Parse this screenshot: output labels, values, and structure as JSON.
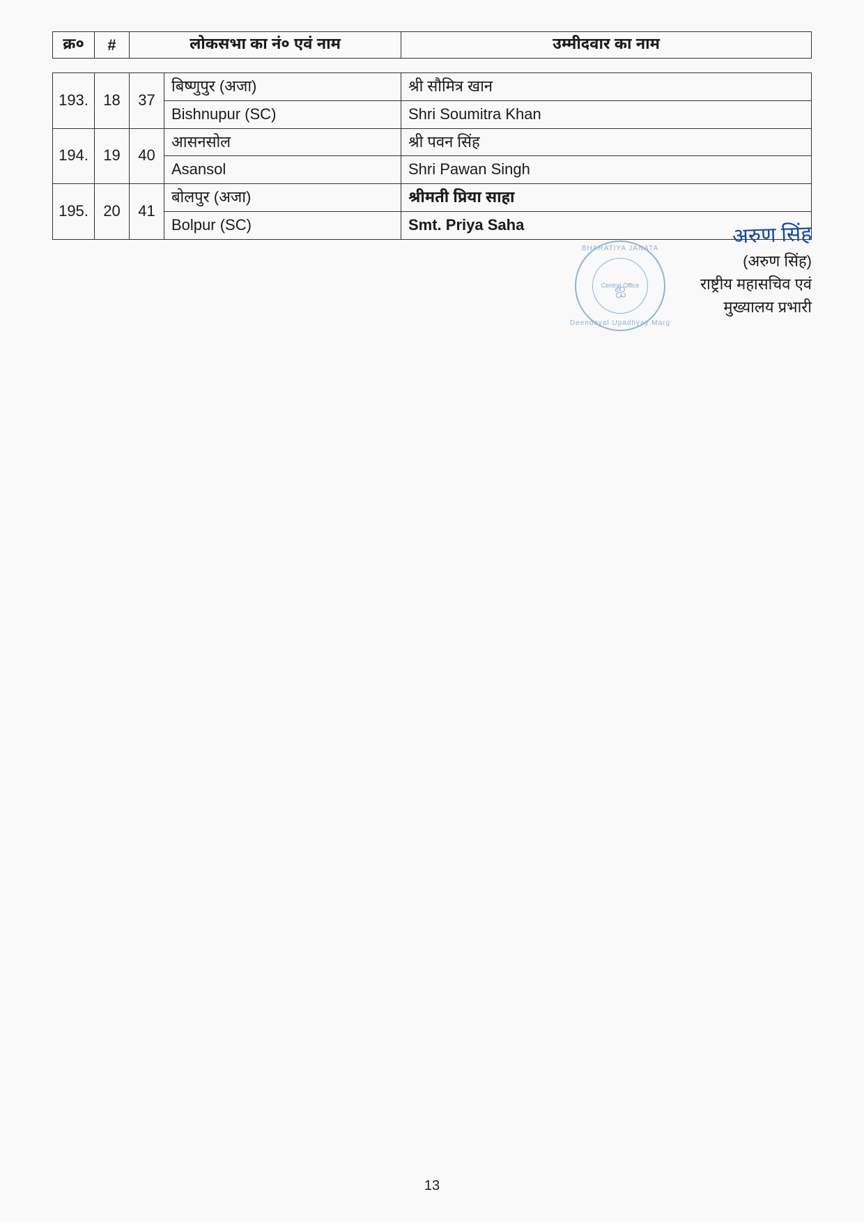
{
  "header": {
    "kr": "क्र०",
    "hash": "#",
    "seat": "लोकसभा का नं० एवं नाम",
    "candidate": "उम्मीदवार का नाम"
  },
  "rows": [
    {
      "kr": "193.",
      "hash": "18",
      "num": "37",
      "seat_hi": "बिष्णुपुर (अजा)",
      "seat_en": "Bishnupur (SC)",
      "cand_hi": "श्री सौमित्र खान",
      "cand_en": "Shri Soumitra Khan",
      "bold": false
    },
    {
      "kr": "194.",
      "hash": "19",
      "num": "40",
      "seat_hi": "आसनसोल",
      "seat_en": "Asansol",
      "cand_hi": "श्री पवन सिंह",
      "cand_en": "Shri Pawan Singh",
      "bold": false
    },
    {
      "kr": "195.",
      "hash": "20",
      "num": "41",
      "seat_hi": "बोलपुर (अजा)",
      "seat_en": "Bolpur (SC)",
      "cand_hi": "श्रीमती प्रिया साहा",
      "cand_en": "Smt. Priya Saha",
      "bold": true
    }
  ],
  "signature": {
    "handwritten": "अरुण सिंह",
    "name": "(अरुण सिंह)",
    "line1": "राष्ट्रीय महासचिव एवं",
    "line2": "मुख्यालय प्रभारी"
  },
  "stamp": {
    "top_arc": "BHARATIYA JANATA",
    "center1": "Central Office",
    "bottom_arc": "Deendayal Upadhyay Marg"
  },
  "page_number": "13"
}
